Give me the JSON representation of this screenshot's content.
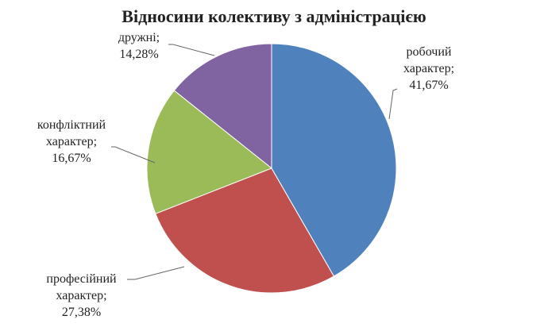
{
  "chart_data": {
    "type": "pie",
    "title": "Відносини колективу з адміністрацією",
    "categories": [
      "робочий характер;",
      "професійний характер;",
      "конфліктний характер;",
      "дружні;"
    ],
    "values": [
      41.67,
      27.38,
      16.67,
      14.28
    ],
    "value_labels": [
      "41,67%",
      "27,38%",
      "16,67%",
      "14,28%"
    ],
    "colors": [
      "#4f81bd",
      "#c0504d",
      "#9bbb59",
      "#8064a2"
    ]
  }
}
